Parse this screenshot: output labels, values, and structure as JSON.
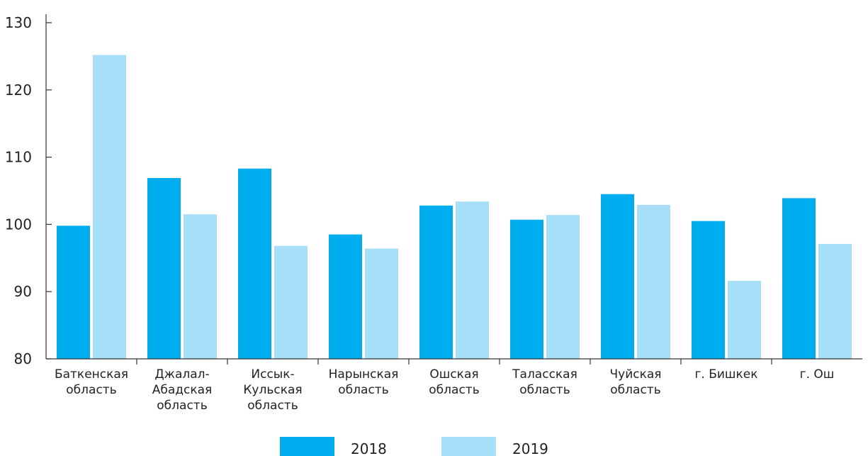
{
  "chart_data": {
    "type": "bar",
    "categories": [
      [
        "Баткенская",
        "область"
      ],
      [
        "Джалал-",
        "Абадская",
        "область"
      ],
      [
        "Иссык-",
        "Кульская",
        "область"
      ],
      [
        "Нарынская",
        "область"
      ],
      [
        "Ошская",
        "область"
      ],
      [
        "Таласская",
        "область"
      ],
      [
        "Чуйская",
        "область"
      ],
      [
        "г. Бишкек"
      ],
      [
        "г. Ош"
      ]
    ],
    "series": [
      {
        "name": "2018",
        "color": "#00aeef",
        "values": [
          99.8,
          106.9,
          108.3,
          98.5,
          102.8,
          100.7,
          104.5,
          100.5,
          103.9
        ]
      },
      {
        "name": "2019",
        "color": "#a8def8",
        "values": [
          125.2,
          101.5,
          96.8,
          96.4,
          103.4,
          101.4,
          102.9,
          91.6,
          97.1
        ]
      }
    ],
    "ylim": [
      80,
      130
    ],
    "yticks": [
      80,
      90,
      100,
      110,
      120,
      130
    ],
    "legend_position": "bottom",
    "grid": false
  }
}
